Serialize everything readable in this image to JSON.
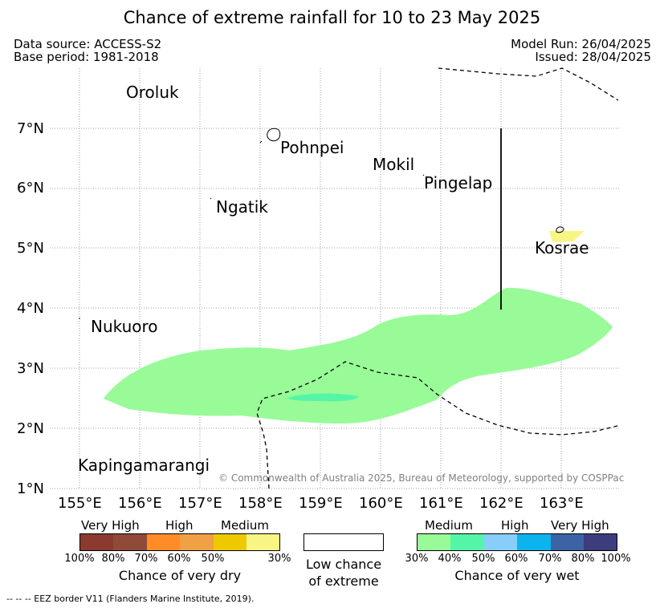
{
  "title": "Chance of extreme rainfall for 10 to 23 May 2025",
  "meta": {
    "data_source": "Data source: ACCESS-S2",
    "base_period": "Base period: 1981-2018",
    "model_run": "Model Run: 26/04/2025",
    "issued": "Issued: 28/04/2025"
  },
  "map": {
    "lon_ticks": [
      "155°E",
      "156°E",
      "157°E",
      "158°E",
      "159°E",
      "160°E",
      "161°E",
      "162°E",
      "163°E"
    ],
    "lat_ticks": [
      "7°N",
      "6°N",
      "5°N",
      "4°N",
      "3°N",
      "2°N",
      "1°N"
    ],
    "places": {
      "oroluk": "Oroluk",
      "pohnpei": "Pohnpei",
      "mokil": "Mokil",
      "pingelap": "Pingelap",
      "ngatik": "Ngatik",
      "kosrae": "Kosrae",
      "nukuoro": "Nukuoro",
      "kapingamarangi": "Kapingamarangi"
    },
    "copyright": "© Commonwealth of Australia 2025, Bureau of Meteorology, supported by COSPPac"
  },
  "legend": {
    "dry": {
      "headers": [
        "Very High",
        "High",
        "Medium"
      ],
      "ticks": [
        "100%",
        "80%",
        "70%",
        "60%",
        "50%",
        "30%"
      ],
      "colors": [
        "#8b3a2f",
        "#8f4a3a",
        "#ff8c26",
        "#f0a045",
        "#eec900",
        "#f8f585"
      ],
      "caption": "Chance of very dry"
    },
    "low": {
      "caption_line1": "Low chance",
      "caption_line2": "of extreme"
    },
    "wet": {
      "headers": [
        "Medium",
        "High",
        "Very High"
      ],
      "ticks": [
        "30%",
        "40%",
        "50%",
        "60%",
        "70%",
        "80%",
        "100%"
      ],
      "colors": [
        "#98fb98",
        "#55f5a8",
        "#87cefa",
        "#0bb4ef",
        "#3c64a5",
        "#3c3c7e"
      ],
      "caption": "Chance of very wet"
    }
  },
  "footer": "--  --  -- EEZ border V11 (Flanders Marine Institute, 2019)."
}
